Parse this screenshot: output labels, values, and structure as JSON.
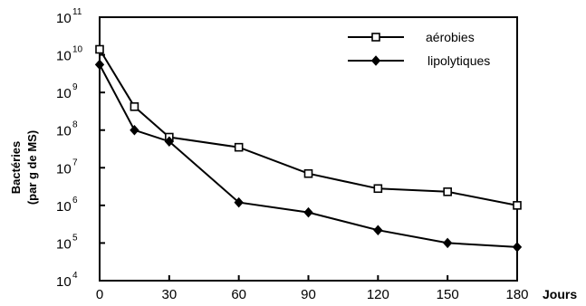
{
  "chart_data": {
    "type": "line",
    "xlabel": "Jours",
    "ylabel_line1": "Bactéries",
    "ylabel_line2": "(par g de MS)",
    "yscale": "log",
    "ylim": [
      10000,
      100000000000
    ],
    "y_ticks": [
      {
        "base": "10",
        "exp": "4",
        "value": 10000
      },
      {
        "base": "10",
        "exp": "5",
        "value": 100000
      },
      {
        "base": "10",
        "exp": "6",
        "value": 1000000
      },
      {
        "base": "10",
        "exp": "7",
        "value": 10000000
      },
      {
        "base": "10",
        "exp": "8",
        "value": 100000000
      },
      {
        "base": "10",
        "exp": "9",
        "value": 1000000000
      },
      {
        "base": "10",
        "exp": "10",
        "value": 10000000000
      },
      {
        "base": "10",
        "exp": "11",
        "value": 100000000000
      }
    ],
    "xlim": [
      0,
      180
    ],
    "x_ticks": [
      {
        "label": "0",
        "value": 0
      },
      {
        "label": "30",
        "value": 30
      },
      {
        "label": "60",
        "value": 60
      },
      {
        "label": "90",
        "value": 90
      },
      {
        "label": "120",
        "value": 120
      },
      {
        "label": "150",
        "value": 150
      },
      {
        "label": "180",
        "value": 180
      }
    ],
    "legend_position": "top-right",
    "series": [
      {
        "name": "aérobies",
        "marker": "open-square",
        "points": [
          {
            "x": 0,
            "y": 14000000000
          },
          {
            "x": 15,
            "y": 420000000
          },
          {
            "x": 30,
            "y": 65000000
          },
          {
            "x": 60,
            "y": 35000000
          },
          {
            "x": 90,
            "y": 7000000
          },
          {
            "x": 120,
            "y": 2800000
          },
          {
            "x": 150,
            "y": 2300000
          },
          {
            "x": 180,
            "y": 1000000
          }
        ]
      },
      {
        "name": "lipolytiques",
        "marker": "filled-diamond",
        "points": [
          {
            "x": 0,
            "y": 5500000000
          },
          {
            "x": 15,
            "y": 100000000
          },
          {
            "x": 30,
            "y": 50000000
          },
          {
            "x": 60,
            "y": 1200000
          },
          {
            "x": 90,
            "y": 650000
          },
          {
            "x": 120,
            "y": 220000
          },
          {
            "x": 150,
            "y": 100000
          },
          {
            "x": 180,
            "y": 78000
          }
        ]
      }
    ]
  }
}
